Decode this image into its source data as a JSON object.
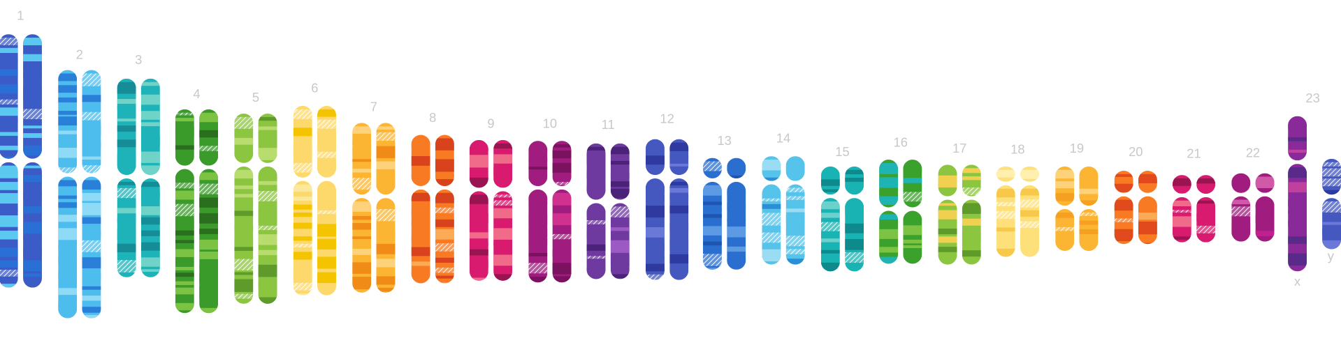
{
  "number_labels": [
    "1",
    "2",
    "3",
    "4",
    "5",
    "6",
    "7",
    "8",
    "9",
    "10",
    "11",
    "12",
    "13",
    "14",
    "15",
    "16",
    "17",
    "18",
    "19",
    "20",
    "21",
    "22",
    "23"
  ],
  "sex_labels": [
    "x",
    "y"
  ]
}
